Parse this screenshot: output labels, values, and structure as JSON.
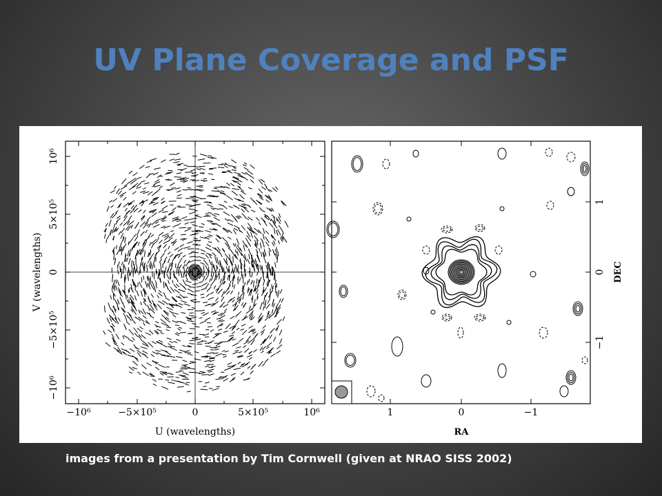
{
  "slide": {
    "title": "UV Plane Coverage and PSF",
    "caption": "images from a presentation by Tim Cornwell (given at NRAO SISS 2002)"
  },
  "colors": {
    "title": "#4f81bd",
    "caption": "#ffffff",
    "panel_background": "#ffffff"
  },
  "figure": {
    "uv_plot": {
      "xlabel": "U (wavelengths)",
      "ylabel": "V (wavelengths)",
      "x_ticks": [
        "−10⁶",
        "−5×10⁵",
        "0",
        "5×10⁵",
        "10⁶"
      ],
      "y_ticks": [
        "10⁶",
        "5×10⁵",
        "0",
        "−5×10⁵",
        "−10⁶"
      ],
      "xlim": [
        -1100000,
        1100000
      ],
      "ylim": [
        -1100000,
        1100000
      ],
      "content": "uv coverage tracks"
    },
    "psf_plot": {
      "xlabel": "RA",
      "ylabel": "DEC",
      "x_ticks": [
        "1",
        "0",
        "−1"
      ],
      "y_ticks": [
        "1",
        "0",
        "−1"
      ],
      "content": "point spread function contours",
      "beam_marker": "beam-ellipse"
    }
  }
}
